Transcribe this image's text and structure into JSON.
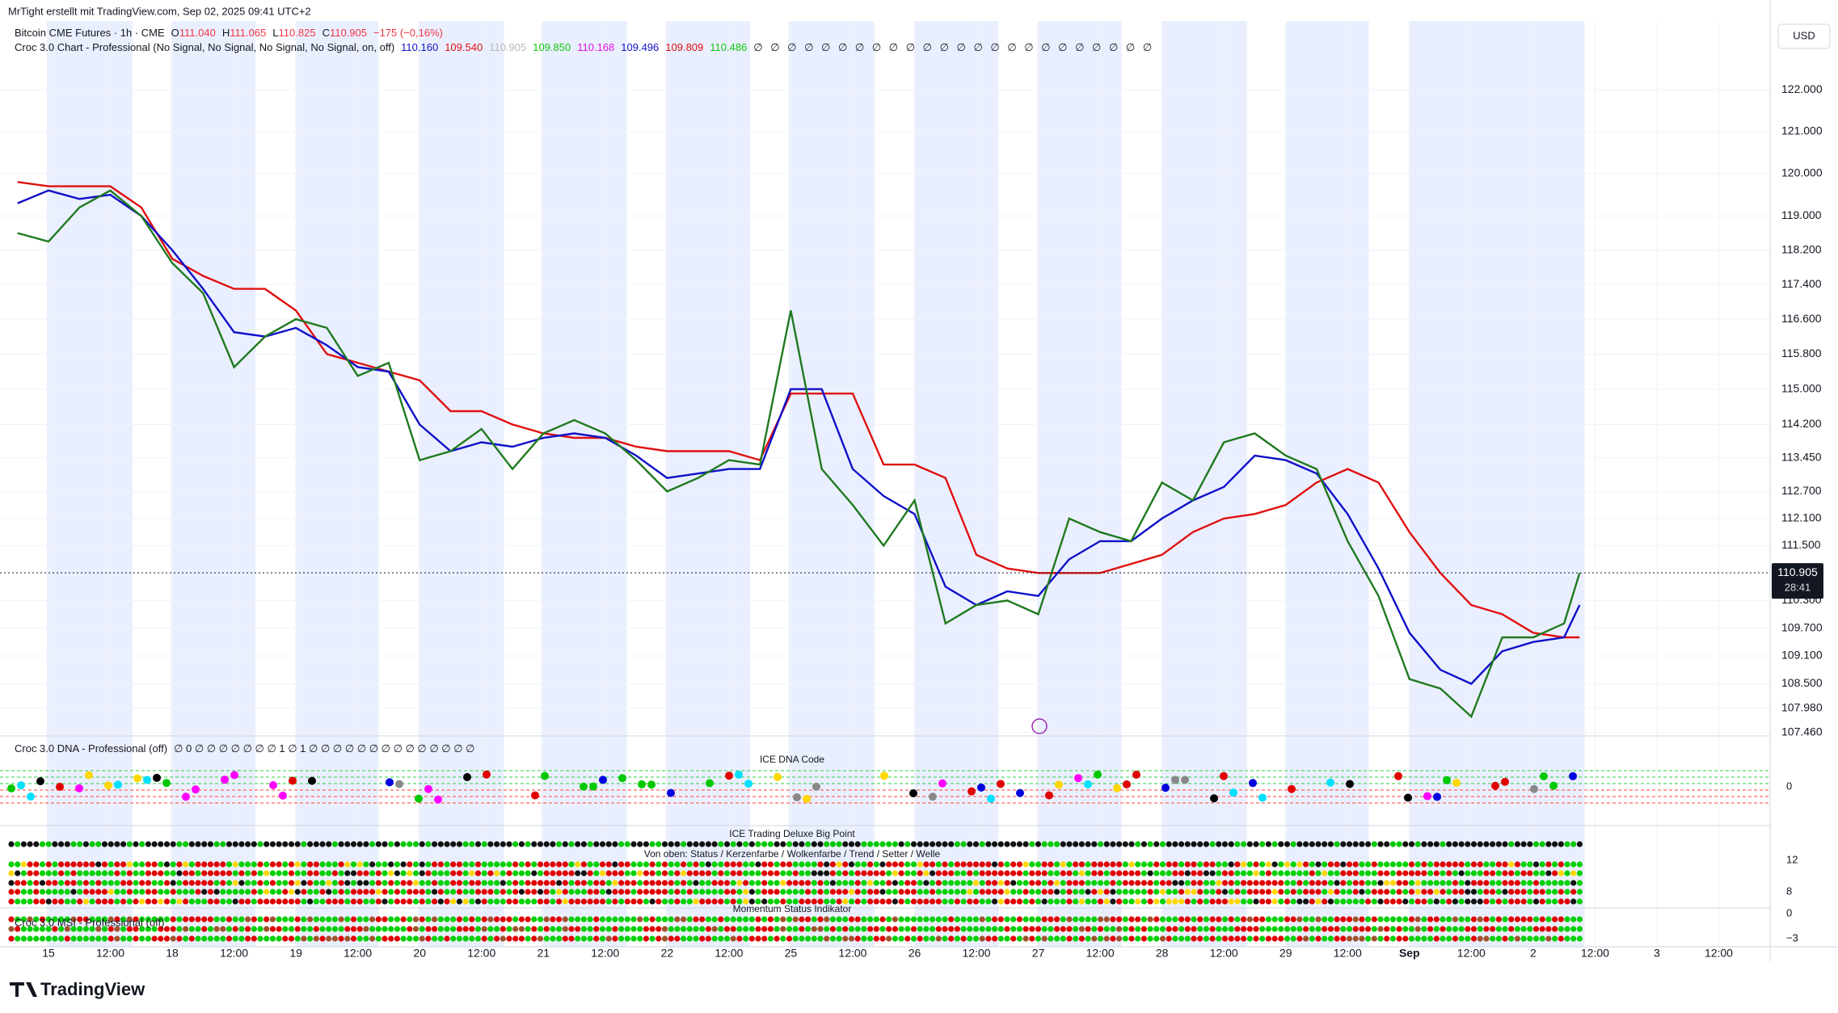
{
  "header": {
    "credit": "MrTight erstellt mit TradingView.com, Sep 02, 2025 09:41 UTC+2",
    "symbol": "Bitcoin CME Futures · 1h · CME",
    "ohlc": [
      {
        "text": "O",
        "color": "#131722"
      },
      {
        "text": "111.040",
        "color": "#f23645"
      },
      {
        "text": "H",
        "color": "#131722"
      },
      {
        "text": "111.065",
        "color": "#f23645"
      },
      {
        "text": "L",
        "color": "#131722"
      },
      {
        "text": "110.825",
        "color": "#f23645"
      },
      {
        "text": "C",
        "color": "#131722"
      },
      {
        "text": "110.905",
        "color": "#f23645"
      },
      {
        "text": "−175 (−0,16%)",
        "color": "#f23645"
      }
    ],
    "indicator": "Croc 3.0 Chart - Professional (No Signal, No Signal, No Signal, No Signal, on, off)",
    "indicator_values": [
      {
        "text": "110.160",
        "color": "#1010c8"
      },
      {
        "text": "109.540",
        "color": "#e01010"
      },
      {
        "text": "110.905",
        "color": "#b8b8b8"
      },
      {
        "text": "109.850",
        "color": "#10c810"
      },
      {
        "text": "110.168",
        "color": "#e010e0"
      },
      {
        "text": "109.496",
        "color": "#1010c8"
      },
      {
        "text": "109.809",
        "color": "#e01010"
      },
      {
        "text": "110.486",
        "color": "#10c810"
      }
    ],
    "indicator_nulls": "∅ ∅ ∅ ∅ ∅ ∅ ∅ ∅ ∅ ∅ ∅ ∅ ∅ ∅ ∅ ∅ ∅ ∅ ∅ ∅ ∅ ∅ ∅ ∅"
  },
  "chart_data": {
    "type": "line",
    "log_scale": true,
    "currency": "USD",
    "ylim": [
      107.39,
      123.67
    ],
    "yticks": [
      {
        "value": 122,
        "label": "122.000"
      },
      {
        "value": 121,
        "label": "121.000"
      },
      {
        "value": 120,
        "label": "120.000"
      },
      {
        "value": 119,
        "label": "119.000"
      },
      {
        "value": 118.2,
        "label": "118.200"
      },
      {
        "value": 117.4,
        "label": "117.400"
      },
      {
        "value": 116.6,
        "label": "116.600"
      },
      {
        "value": 115.8,
        "label": "115.800"
      },
      {
        "value": 115,
        "label": "115.000"
      },
      {
        "value": 114.2,
        "label": "114.200"
      },
      {
        "value": 113.45,
        "label": "113.450"
      },
      {
        "value": 112.7,
        "label": "112.700"
      },
      {
        "value": 112.1,
        "label": "112.100"
      },
      {
        "value": 111.5,
        "label": "111.500"
      },
      {
        "value": 110.3,
        "label": "110.300"
      },
      {
        "value": 109.7,
        "label": "109.700"
      },
      {
        "value": 109.1,
        "label": "109.100"
      },
      {
        "value": 108.5,
        "label": "108.500"
      },
      {
        "value": 107.98,
        "label": "107.980"
      },
      {
        "value": 107.46,
        "label": "107.460"
      }
    ],
    "xlim": [
      -0.64,
      27.83
    ],
    "xticks": [
      {
        "value": 0,
        "label": "15"
      },
      {
        "value": 1,
        "label": "12:00"
      },
      {
        "value": 2,
        "label": "18"
      },
      {
        "value": 3,
        "label": "12:00"
      },
      {
        "value": 4,
        "label": "19"
      },
      {
        "value": 5,
        "label": "12:00"
      },
      {
        "value": 6,
        "label": "20"
      },
      {
        "value": 7,
        "label": "12:00"
      },
      {
        "value": 8,
        "label": "21"
      },
      {
        "value": 9,
        "label": "12:00"
      },
      {
        "value": 10,
        "label": "22"
      },
      {
        "value": 11,
        "label": "12:00"
      },
      {
        "value": 12,
        "label": "25"
      },
      {
        "value": 13,
        "label": "12:00"
      },
      {
        "value": 14,
        "label": "26"
      },
      {
        "value": 15,
        "label": "12:00"
      },
      {
        "value": 16,
        "label": "27"
      },
      {
        "value": 17,
        "label": "12:00"
      },
      {
        "value": 18,
        "label": "28"
      },
      {
        "value": 19,
        "label": "12:00"
      },
      {
        "value": 20,
        "label": "29"
      },
      {
        "value": 21,
        "label": "12:00"
      },
      {
        "value": 22,
        "label": "Sep"
      },
      {
        "value": 23,
        "label": "12:00"
      },
      {
        "value": 24,
        "label": "2"
      },
      {
        "value": 25,
        "label": "12:00"
      },
      {
        "value": 26,
        "label": "3"
      },
      {
        "value": 27,
        "label": "12:00"
      }
    ],
    "x": [
      -0.5,
      0,
      0.5,
      1,
      1.5,
      2,
      2.5,
      3,
      3.5,
      4,
      4.5,
      5,
      5.5,
      6,
      6.5,
      7,
      7.5,
      8,
      8.5,
      9,
      9.5,
      10,
      10.5,
      11,
      11.5,
      12,
      12.5,
      13,
      13.5,
      14,
      14.5,
      15,
      15.5,
      16,
      16.5,
      17,
      17.5,
      18,
      18.5,
      19,
      19.5,
      20,
      20.5,
      21,
      21.5,
      22,
      22.5,
      23,
      23.5,
      24,
      24.5,
      24.75
    ],
    "series": [
      {
        "color": "#e01010",
        "values": [
          119.8,
          119.7,
          119.7,
          119.7,
          119.2,
          118.0,
          117.6,
          117.3,
          117.3,
          116.8,
          115.8,
          115.6,
          115.4,
          115.2,
          114.5,
          114.5,
          114.2,
          114.0,
          113.9,
          113.9,
          113.7,
          113.6,
          113.6,
          113.6,
          113.4,
          114.9,
          114.9,
          114.9,
          113.3,
          113.3,
          113.0,
          111.3,
          111.0,
          110.9,
          110.9,
          110.9,
          111.1,
          111.3,
          111.8,
          112.1,
          112.2,
          112.4,
          112.9,
          113.2,
          112.9,
          111.8,
          110.9,
          110.2,
          110.0,
          109.6,
          109.5,
          109.5
        ]
      },
      {
        "color": "#1010c8",
        "values": [
          119.3,
          119.6,
          119.4,
          119.5,
          119.0,
          118.2,
          117.3,
          116.3,
          116.2,
          116.4,
          116.0,
          115.5,
          115.4,
          114.2,
          113.6,
          113.8,
          113.7,
          113.9,
          114.0,
          113.9,
          113.5,
          113.0,
          113.1,
          113.2,
          113.2,
          115.0,
          115.0,
          113.2,
          112.6,
          112.2,
          110.6,
          110.2,
          110.5,
          110.4,
          111.2,
          111.6,
          111.6,
          112.1,
          112.5,
          112.8,
          113.5,
          113.4,
          113.1,
          112.2,
          111.0,
          109.6,
          108.8,
          108.5,
          109.2,
          109.4,
          109.5,
          110.2
        ]
      },
      {
        "color": "#1f7a1f",
        "values": [
          118.6,
          118.4,
          119.2,
          119.6,
          119.0,
          117.9,
          117.2,
          115.5,
          116.2,
          116.6,
          116.4,
          115.3,
          115.6,
          113.4,
          113.6,
          114.1,
          113.2,
          114.0,
          114.3,
          114.0,
          113.4,
          112.7,
          113.0,
          113.4,
          113.3,
          116.8,
          113.2,
          112.4,
          111.5,
          112.5,
          109.8,
          110.2,
          110.3,
          110.0,
          112.1,
          111.8,
          111.6,
          112.9,
          112.5,
          113.8,
          114.0,
          113.5,
          113.2,
          111.6,
          110.4,
          108.6,
          108.4,
          107.8,
          109.5,
          109.5,
          109.8,
          110.9
        ]
      }
    ],
    "last_price": 110.905,
    "countdown": "28:41"
  },
  "panes": {
    "dna": {
      "title": "Croc 3.0 DNA - Professional (off)",
      "legend": "∅ 0 ∅ ∅ ∅ ∅ ∅ ∅ ∅ 1 ∅ 1 ∅ ∅ ∅ ∅ ∅ ∅ ∅ ∅ ∅ ∅ ∅ ∅ ∅ ∅",
      "label": "ICE DNA Code",
      "ticks": [
        "0"
      ]
    },
    "bigpoint": {
      "title": "ICE Trading Deluxe Big Point",
      "subtitle": "Von oben: Status / Kerzenfarbe / Wolkenfarbe / Trend / Setter / Welle",
      "ticks": [
        "12",
        "8"
      ]
    },
    "msi": {
      "title": "Croc 3.0 MSI - Professional (off)",
      "label": "Momentum Status Indikator",
      "ticks": [
        "0",
        "−3"
      ]
    }
  },
  "footer": {
    "logo": "TradingView"
  }
}
